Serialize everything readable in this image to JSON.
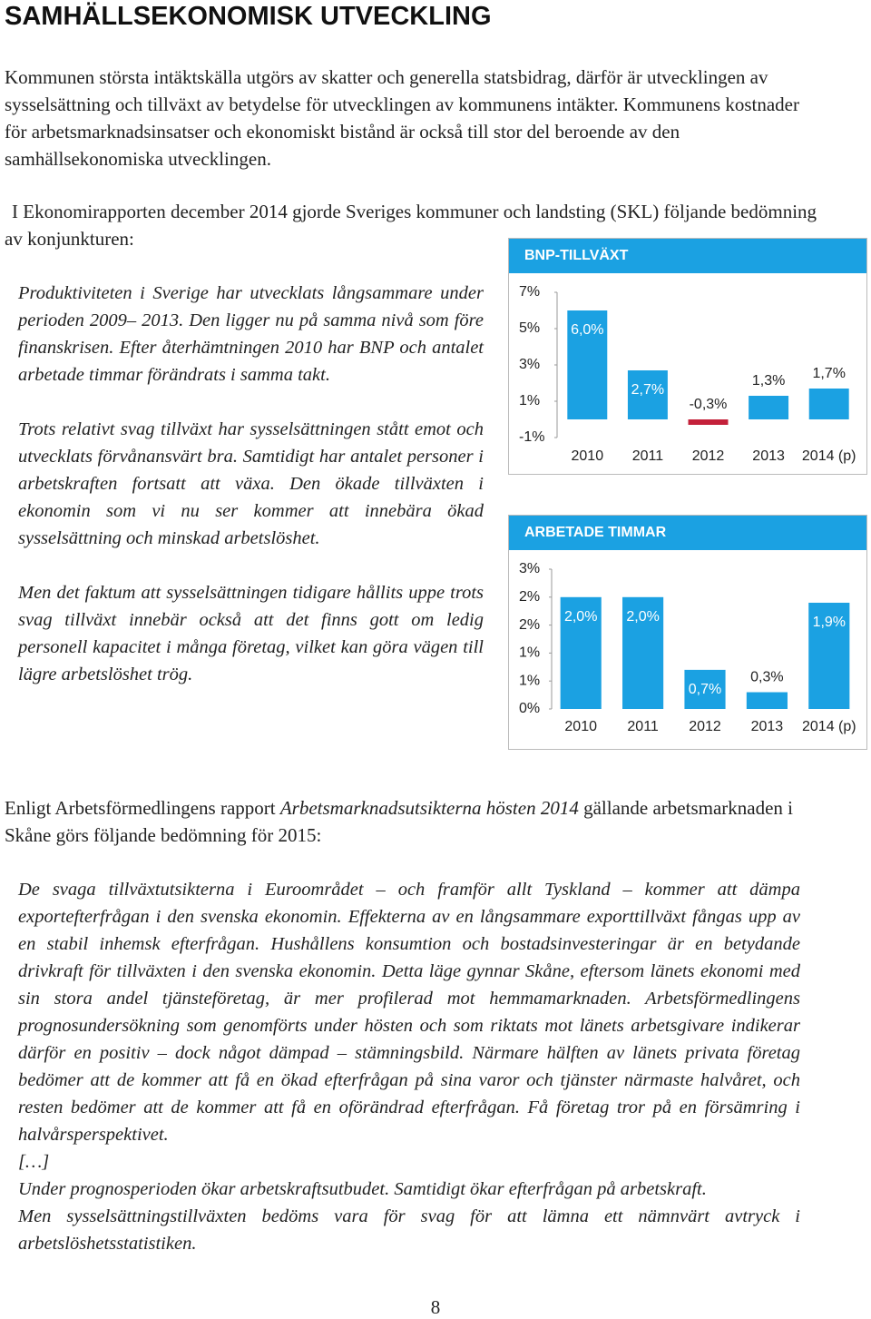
{
  "heading": "SAMHÄLLSEKONOMISK UTVECKLING",
  "intro": "Kommunen största intäktskälla utgörs av skatter och generella statsbidrag, därför är utvecklingen av sysselsättning och tillväxt av betydelse för utvecklingen av kommunens intäkter. Kommunens kostnader för arbetsmarknadsinsatser och ekonomiskt bistånd är också till stor del beroende av den samhällsekonomiska utvecklingen.",
  "skl_intro": "I Ekonomirapporten december 2014 gjorde Sveriges kommuner och landsting (SKL) följande bedömning av konjunkturen:",
  "skl_quote": [
    "Produktiviteten i Sverige har utvecklats långsammare under perioden 2009– 2013. Den ligger nu på samma nivå som före finanskrisen. Efter återhämtningen 2010 har BNP och antalet arbetade timmar förändrats i samma takt.",
    "Trots relativt svag tillväxt har sysselsättningen stått emot och utvecklats förvånansvärt bra. Samtidigt har antalet personer i arbetskraften fortsatt att växa. Den ökade tillväxten i ekonomin som vi nu ser kommer att innebära ökad sysselsättning och minskad arbetslöshet.",
    "Men det faktum att sysselsättningen tidigare hållits uppe trots svag tillväxt innebär också att det finns gott om ledig personell kapacitet i många företag, vilket kan göra vägen till lägre arbetslöshet trög."
  ],
  "af_intro": {
    "before": "Enligt Arbetsförmedlingens rapport",
    "report": "Arbetsmarknadsutsikterna hösten 2014",
    "after": "gällande arbetsmarknaden i Skåne görs följande bedömning för 2015:"
  },
  "af_quote": [
    "De svaga tillväxtutsikterna i Euroområdet – och framför allt Tyskland – kommer att dämpa exportefterfrågan i den svenska ekonomin. Effekterna av en långsammare exporttillväxt fångas upp av en stabil inhemsk efterfrågan. Hushållens konsumtion och bostadsinvesteringar är en betydande drivkraft för tillväxten i den svenska ekonomin. Detta läge gynnar Skåne, eftersom länets ekonomi med sin stora andel tjänsteföretag, är mer profilerad mot hemmamarknaden. Arbetsförmedlingens prognosundersökning som genomförts under hösten och som riktats mot länets arbetsgivare indikerar därför en positiv – dock något dämpad – stämningsbild. Närmare hälften av länets privata företag bedömer att de kommer att få en ökad efterfrågan på sina varor och tjänster närmaste halvåret, och resten bedömer att de kommer att få en oförändrad efterfrågan. Få företag tror på en försämring i halvårsperspektivet.",
    "[…]",
    "Under prognosperioden ökar arbetskraftsutbudet. Samtidigt ökar efterfrågan på arbetskraft.",
    "Men sysselsättningstillväxten bedöms vara för svag för att lämna ett nämnvärt avtryck i arbetslöshetsstatistiken."
  ],
  "page_number": "8",
  "chart_data": [
    {
      "type": "bar",
      "title": "BNP-TILLVÄXT",
      "categories": [
        "2010",
        "2011",
        "2012",
        "2013",
        "2014 (p)"
      ],
      "values": [
        6.0,
        2.7,
        -0.3,
        1.3,
        1.7
      ],
      "value_labels": [
        "6,0%",
        "2,7%",
        "-0,3%",
        "1,3%",
        "1,7%"
      ],
      "color": "#1ba1e2",
      "negative_color": "#c4213a",
      "ylim": [
        -1,
        7
      ],
      "yticks": [
        {
          "value": 7,
          "label": "7%"
        },
        {
          "value": 5,
          "label": "5%"
        },
        {
          "value": 3,
          "label": "3%"
        },
        {
          "value": 1,
          "label": "1%"
        },
        {
          "value": -1,
          "label": "-1%"
        }
      ]
    },
    {
      "type": "bar",
      "title": "ARBETADE TIMMAR",
      "categories": [
        "2010",
        "2011",
        "2012",
        "2013",
        "2014 (p)"
      ],
      "values": [
        2.0,
        2.0,
        0.7,
        0.3,
        1.9
      ],
      "value_labels": [
        "2,0%",
        "2,0%",
        "0,7%",
        "0,3%",
        "1,9%"
      ],
      "color": "#1ba1e2",
      "ylim": [
        0,
        2.5
      ],
      "yticks": [
        {
          "value": 2.5,
          "label": "3%"
        },
        {
          "value": 2.0,
          "label": "2%"
        },
        {
          "value": 1.5,
          "label": "2%"
        },
        {
          "value": 1.0,
          "label": "1%"
        },
        {
          "value": 0.5,
          "label": "1%"
        },
        {
          "value": 0,
          "label": "0%"
        }
      ]
    }
  ]
}
